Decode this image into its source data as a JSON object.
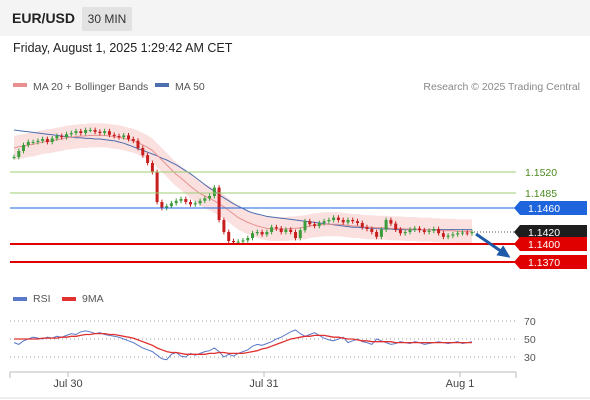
{
  "header": {
    "symbol": "EUR/USD",
    "timeframe": "30 MIN"
  },
  "datetime": "Friday, August 1, 2025 1:29:42 AM CET",
  "legend": {
    "ma_label": "MA 20 + Bollinger Bands",
    "ma50_label": "MA 50",
    "credit": "Research © 2025 Trading Central",
    "rsi_label": "RSI",
    "rsi_ma_label": "9MA"
  },
  "colors": {
    "candle_up": "#3a9c3a",
    "candle_down": "#c81e1e",
    "bollinger_fill": "#fbe0e0",
    "ma20": "#e89090",
    "ma50": "#4e6eae",
    "support": "#e00000",
    "resistance": "#1e64dc",
    "pivot": "#1e1e1e",
    "green_level": "#9ccc70",
    "arrow": "#1e5aa8",
    "rsi_line": "#5a78c8",
    "rsi_ma": "#e03030"
  },
  "chart_data": [
    {
      "type": "candlestick",
      "title": "EUR/USD 30 MIN",
      "x_ticks": [
        "Jul 30",
        "Jul 31",
        "Aug 1"
      ],
      "price_range": [
        1.134,
        1.164
      ],
      "levels": [
        {
          "label": "1.1520",
          "value": 1.152,
          "kind": "resistance-2",
          "color": "#9ccc70"
        },
        {
          "label": "1.1485",
          "value": 1.1485,
          "kind": "resistance-1",
          "color": "#9ccc70"
        },
        {
          "label": "1.1460",
          "value": 1.146,
          "kind": "pivot",
          "color": "#1e64dc"
        },
        {
          "label": "1.1420",
          "value": 1.142,
          "kind": "last-price",
          "color": "#1e1e1e"
        },
        {
          "label": "1.1400",
          "value": 1.14,
          "kind": "support-1",
          "color": "#e00000"
        },
        {
          "label": "1.1370",
          "value": 1.137,
          "kind": "support-2",
          "color": "#e00000"
        }
      ],
      "close": [
        1.1545,
        1.1555,
        1.1565,
        1.157,
        1.157,
        1.1572,
        1.1575,
        1.157,
        1.1576,
        1.158,
        1.1578,
        1.1583,
        1.1585,
        1.1588,
        1.1585,
        1.159,
        1.159,
        1.1587,
        1.1585,
        1.1588,
        1.1582,
        1.158,
        1.1578,
        1.1581,
        1.1575,
        1.1572,
        1.156,
        1.1548,
        1.1535,
        1.152,
        1.147,
        1.146,
        1.1463,
        1.1468,
        1.1472,
        1.1475,
        1.147,
        1.1466,
        1.1468,
        1.1472,
        1.1476,
        1.148,
        1.1494,
        1.144,
        1.142,
        1.1405,
        1.1403,
        1.1404,
        1.1406,
        1.141,
        1.1418,
        1.142,
        1.1416,
        1.142,
        1.1428,
        1.1426,
        1.142,
        1.1424,
        1.142,
        1.141,
        1.1423,
        1.1438,
        1.1433,
        1.143,
        1.1435,
        1.1438,
        1.144,
        1.1444,
        1.144,
        1.1436,
        1.144,
        1.1438,
        1.1435,
        1.1428,
        1.1425,
        1.142,
        1.1412,
        1.1424,
        1.144,
        1.1434,
        1.1424,
        1.1418,
        1.142,
        1.1424,
        1.1426,
        1.1423,
        1.142,
        1.1422,
        1.1425,
        1.1418,
        1.1412,
        1.1414,
        1.1416,
        1.1418,
        1.1419,
        1.1418,
        1.142
      ],
      "ma20": [
        1.156,
        1.1562,
        1.1563,
        1.1565,
        1.1566,
        1.1568,
        1.157,
        1.1571,
        1.1572,
        1.1574,
        1.1575,
        1.1577,
        1.1578,
        1.1579,
        1.158,
        1.158,
        1.1581,
        1.1581,
        1.1581,
        1.1581,
        1.158,
        1.1579,
        1.1578,
        1.1576,
        1.1574,
        1.1572,
        1.1569,
        1.1565,
        1.1561,
        1.1556,
        1.1548,
        1.154,
        1.1532,
        1.1524,
        1.1516,
        1.151,
        1.1503,
        1.1496,
        1.149,
        1.1484,
        1.148,
        1.1476,
        1.1472,
        1.1467,
        1.1462,
        1.1456,
        1.145,
        1.1444,
        1.144,
        1.1436,
        1.1433,
        1.143,
        1.1428,
        1.1426,
        1.1425,
        1.1425,
        1.1425,
        1.1425,
        1.1426,
        1.1426,
        1.1427,
        1.1428,
        1.143,
        1.1431,
        1.1432,
        1.1433,
        1.1433,
        1.1433,
        1.1433,
        1.1432,
        1.1431,
        1.143,
        1.143,
        1.1429,
        1.1428,
        1.1428,
        1.1427,
        1.1427,
        1.1427,
        1.1426,
        1.1426,
        1.1426,
        1.1425,
        1.1425,
        1.1425,
        1.1424,
        1.1424,
        1.1424,
        1.1423,
        1.1423,
        1.1422,
        1.1422,
        1.1422,
        1.1421,
        1.1421,
        1.1421,
        1.1421
      ],
      "ma50": [
        1.159,
        1.1589,
        1.1588,
        1.1587,
        1.1586,
        1.1585,
        1.1584,
        1.1583,
        1.1582,
        1.1581,
        1.158,
        1.1579,
        1.1578,
        1.1577,
        1.1577,
        1.1576,
        1.1576,
        1.1575,
        1.1575,
        1.1574,
        1.1573,
        1.1572,
        1.157,
        1.1568,
        1.1565,
        1.1562,
        1.1559,
        1.1556,
        1.1553,
        1.155,
        1.1547,
        1.1543,
        1.154,
        1.1536,
        1.1532,
        1.1527,
        1.1522,
        1.1517,
        1.1511,
        1.1505,
        1.1499,
        1.1493,
        1.1488,
        1.1482,
        1.1477,
        1.1472,
        1.1467,
        1.1463,
        1.1459,
        1.1455,
        1.1452,
        1.145,
        1.1448,
        1.1446,
        1.1445,
        1.1444,
        1.1443,
        1.1442,
        1.1441,
        1.144,
        1.1439,
        1.1438,
        1.1437,
        1.1436,
        1.1435,
        1.1434,
        1.1433,
        1.1432,
        1.1431,
        1.143,
        1.1429,
        1.1428,
        1.1428,
        1.1427,
        1.1427,
        1.1426,
        1.1426,
        1.1425,
        1.1425,
        1.1425,
        1.1424,
        1.1424,
        1.1424,
        1.1424,
        1.1424,
        1.1424,
        1.1424,
        1.1424,
        1.1424,
        1.1424,
        1.1424,
        1.1424,
        1.1424,
        1.1424,
        1.1424,
        1.1424,
        1.1424
      ],
      "bollinger_band_width": 0.002,
      "forecast_target": 1.137
    },
    {
      "type": "line",
      "title": "RSI",
      "y_ticks": [
        "70",
        "50",
        "30"
      ],
      "ylim": [
        20,
        80
      ],
      "series": [
        {
          "name": "RSI",
          "values": [
            46,
            44,
            48,
            50,
            52,
            51,
            50,
            52,
            51,
            53,
            52,
            54,
            56,
            55,
            58,
            59,
            58,
            56,
            57,
            55,
            54,
            53,
            52,
            50,
            48,
            46,
            43,
            40,
            38,
            36,
            32,
            28,
            27,
            33,
            35,
            31,
            30,
            34,
            32,
            34,
            36,
            37,
            40,
            36,
            30,
            33,
            31,
            34,
            36,
            38,
            42,
            44,
            43,
            45,
            47,
            50,
            52,
            55,
            58,
            60,
            56,
            53,
            55,
            57,
            54,
            51,
            49,
            48,
            50,
            52,
            46,
            48,
            50,
            47,
            46,
            44,
            50,
            48,
            46,
            44,
            45,
            47,
            46,
            45,
            47,
            46,
            44,
            45,
            46,
            47,
            46,
            45,
            46,
            47,
            45,
            46,
            47
          ]
        },
        {
          "name": "9MA",
          "values": [
            50,
            50,
            50,
            50,
            50,
            50,
            51,
            51,
            51,
            51,
            52,
            52,
            53,
            53,
            54,
            55,
            55,
            56,
            56,
            56,
            55,
            55,
            54,
            53,
            52,
            51,
            49,
            47,
            45,
            43,
            40,
            38,
            36,
            35,
            35,
            34,
            33,
            33,
            33,
            33,
            33,
            34,
            34,
            35,
            35,
            34,
            34,
            34,
            34,
            35,
            36,
            37,
            39,
            40,
            42,
            44,
            46,
            48,
            50,
            51,
            52,
            53,
            53,
            54,
            54,
            54,
            53,
            52,
            52,
            51,
            50,
            50,
            49,
            48,
            48,
            47,
            47,
            47,
            47,
            47,
            46,
            46,
            46,
            46,
            46,
            46,
            46,
            46,
            46,
            46,
            46,
            46,
            46,
            46,
            46,
            46,
            46
          ]
        }
      ]
    }
  ]
}
